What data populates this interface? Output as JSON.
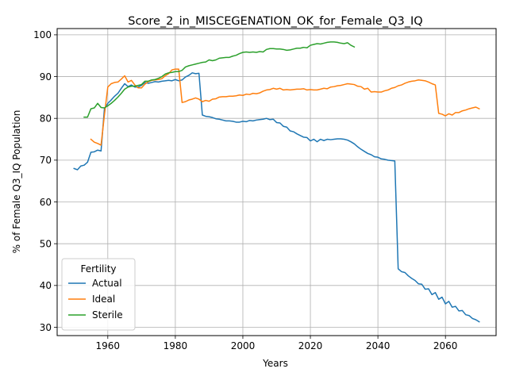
{
  "chart_data": {
    "type": "line",
    "title": "Score_2_in_MISCEGENATION_OK_for_Female_Q3_IQ",
    "xlabel": "Years",
    "ylabel": "% of Female Q3_IQ Population",
    "xlim": [
      1945,
      2075
    ],
    "ylim": [
      28,
      101.5
    ],
    "xticks": [
      1960,
      1980,
      2000,
      2020,
      2040,
      2060
    ],
    "yticks": [
      30,
      40,
      50,
      60,
      70,
      80,
      90,
      100
    ],
    "grid": true,
    "legend": {
      "title": "Fertility",
      "position": "lower-left"
    },
    "series": [
      {
        "name": "Actual",
        "color": "#1f77b4",
        "points": [
          [
            1950,
            68.0
          ],
          [
            1951,
            67.7
          ],
          [
            1952,
            68.6
          ],
          [
            1953,
            68.8
          ],
          [
            1954,
            69.5
          ],
          [
            1955,
            71.9
          ],
          [
            1956,
            72.0
          ],
          [
            1957,
            72.4
          ],
          [
            1958,
            72.2
          ],
          [
            1959,
            82.3
          ],
          [
            1960,
            83.6
          ],
          [
            1961,
            84.4
          ],
          [
            1962,
            85.3
          ],
          [
            1963,
            86.0
          ],
          [
            1964,
            87.2
          ],
          [
            1965,
            88.3
          ],
          [
            1966,
            87.6
          ],
          [
            1967,
            88.0
          ],
          [
            1968,
            87.5
          ],
          [
            1969,
            87.5
          ],
          [
            1970,
            87.9
          ],
          [
            1971,
            88.6
          ],
          [
            1972,
            88.4
          ],
          [
            1973,
            88.6
          ],
          [
            1974,
            88.8
          ],
          [
            1975,
            88.7
          ],
          [
            1976,
            88.9
          ],
          [
            1977,
            89.0
          ],
          [
            1978,
            89.1
          ],
          [
            1979,
            89.0
          ],
          [
            1980,
            89.3
          ],
          [
            1981,
            89.0
          ],
          [
            1982,
            89.2
          ],
          [
            1983,
            89.9
          ],
          [
            1984,
            90.3
          ],
          [
            1985,
            90.9
          ],
          [
            1986,
            90.7
          ],
          [
            1987,
            90.8
          ],
          [
            1988,
            80.8
          ],
          [
            1989,
            80.5
          ],
          [
            1990,
            80.4
          ],
          [
            1991,
            80.2
          ],
          [
            1992,
            79.9
          ],
          [
            1993,
            79.8
          ],
          [
            1994,
            79.6
          ],
          [
            1995,
            79.4
          ],
          [
            1996,
            79.4
          ],
          [
            1997,
            79.3
          ],
          [
            1998,
            79.1
          ],
          [
            1999,
            79.1
          ],
          [
            2000,
            79.3
          ],
          [
            2001,
            79.2
          ],
          [
            2002,
            79.5
          ],
          [
            2003,
            79.4
          ],
          [
            2004,
            79.6
          ],
          [
            2005,
            79.7
          ],
          [
            2006,
            79.8
          ],
          [
            2007,
            80.0
          ],
          [
            2008,
            79.7
          ],
          [
            2009,
            79.8
          ],
          [
            2010,
            79.0
          ],
          [
            2011,
            78.9
          ],
          [
            2012,
            78.1
          ],
          [
            2013,
            77.9
          ],
          [
            2014,
            77.0
          ],
          [
            2015,
            76.8
          ],
          [
            2016,
            76.3
          ],
          [
            2017,
            75.9
          ],
          [
            2018,
            75.5
          ],
          [
            2019,
            75.4
          ],
          [
            2020,
            74.6
          ],
          [
            2021,
            75.0
          ],
          [
            2022,
            74.4
          ],
          [
            2023,
            75.0
          ],
          [
            2024,
            74.7
          ],
          [
            2025,
            75.0
          ],
          [
            2026,
            74.9
          ],
          [
            2027,
            75.0
          ],
          [
            2028,
            75.1
          ],
          [
            2029,
            75.1
          ],
          [
            2030,
            75.0
          ],
          [
            2031,
            74.8
          ],
          [
            2032,
            74.4
          ],
          [
            2033,
            73.9
          ],
          [
            2034,
            73.2
          ],
          [
            2035,
            72.6
          ],
          [
            2036,
            72.1
          ],
          [
            2037,
            71.6
          ],
          [
            2038,
            71.3
          ],
          [
            2039,
            70.8
          ],
          [
            2040,
            70.7
          ],
          [
            2041,
            70.3
          ],
          [
            2042,
            70.2
          ],
          [
            2043,
            70.0
          ],
          [
            2044,
            69.9
          ],
          [
            2045,
            69.8
          ],
          [
            2046,
            44.0
          ],
          [
            2047,
            43.3
          ],
          [
            2048,
            43.1
          ],
          [
            2049,
            42.3
          ],
          [
            2050,
            41.7
          ],
          [
            2051,
            41.2
          ],
          [
            2052,
            40.4
          ],
          [
            2053,
            40.3
          ],
          [
            2054,
            39.1
          ],
          [
            2055,
            39.2
          ],
          [
            2056,
            37.8
          ],
          [
            2057,
            38.3
          ],
          [
            2058,
            36.7
          ],
          [
            2059,
            37.2
          ],
          [
            2060,
            35.6
          ],
          [
            2061,
            36.2
          ],
          [
            2062,
            34.8
          ],
          [
            2063,
            35.0
          ],
          [
            2064,
            33.9
          ],
          [
            2065,
            34.0
          ],
          [
            2066,
            33.0
          ],
          [
            2067,
            32.8
          ],
          [
            2068,
            32.1
          ],
          [
            2069,
            31.8
          ],
          [
            2070,
            31.3
          ]
        ]
      },
      {
        "name": "Ideal",
        "color": "#ff7f0e",
        "points": [
          [
            1955,
            75.0
          ],
          [
            1956,
            74.3
          ],
          [
            1957,
            74.0
          ],
          [
            1958,
            73.6
          ],
          [
            1959,
            80.8
          ],
          [
            1960,
            87.5
          ],
          [
            1961,
            88.3
          ],
          [
            1962,
            88.6
          ],
          [
            1963,
            88.7
          ],
          [
            1964,
            89.4
          ],
          [
            1965,
            90.2
          ],
          [
            1966,
            88.7
          ],
          [
            1967,
            89.1
          ],
          [
            1968,
            88.0
          ],
          [
            1969,
            87.3
          ],
          [
            1970,
            87.3
          ],
          [
            1971,
            88.2
          ],
          [
            1972,
            88.8
          ],
          [
            1973,
            89.1
          ],
          [
            1974,
            89.2
          ],
          [
            1975,
            89.3
          ],
          [
            1976,
            89.5
          ],
          [
            1977,
            90.2
          ],
          [
            1978,
            90.7
          ],
          [
            1979,
            91.6
          ],
          [
            1980,
            91.8
          ],
          [
            1981,
            91.8
          ],
          [
            1982,
            83.8
          ],
          [
            1983,
            84.0
          ],
          [
            1984,
            84.4
          ],
          [
            1985,
            84.6
          ],
          [
            1986,
            84.9
          ],
          [
            1987,
            84.6
          ],
          [
            1988,
            84.0
          ],
          [
            1989,
            84.3
          ],
          [
            1990,
            84.1
          ],
          [
            1991,
            84.6
          ],
          [
            1992,
            84.7
          ],
          [
            1993,
            85.1
          ],
          [
            1994,
            85.2
          ],
          [
            1995,
            85.2
          ],
          [
            1996,
            85.3
          ],
          [
            1997,
            85.3
          ],
          [
            1998,
            85.4
          ],
          [
            1999,
            85.6
          ],
          [
            2000,
            85.5
          ],
          [
            2001,
            85.8
          ],
          [
            2002,
            85.7
          ],
          [
            2003,
            86.0
          ],
          [
            2004,
            85.9
          ],
          [
            2005,
            86.1
          ],
          [
            2006,
            86.5
          ],
          [
            2007,
            86.8
          ],
          [
            2008,
            86.9
          ],
          [
            2009,
            87.2
          ],
          [
            2010,
            87.0
          ],
          [
            2011,
            87.2
          ],
          [
            2012,
            86.8
          ],
          [
            2013,
            86.9
          ],
          [
            2014,
            86.8
          ],
          [
            2015,
            86.9
          ],
          [
            2016,
            87.0
          ],
          [
            2017,
            87.0
          ],
          [
            2018,
            87.1
          ],
          [
            2019,
            86.8
          ],
          [
            2020,
            86.9
          ],
          [
            2021,
            86.8
          ],
          [
            2022,
            86.8
          ],
          [
            2023,
            87.0
          ],
          [
            2024,
            87.2
          ],
          [
            2025,
            87.1
          ],
          [
            2026,
            87.5
          ],
          [
            2027,
            87.6
          ],
          [
            2028,
            87.8
          ],
          [
            2029,
            87.9
          ],
          [
            2030,
            88.1
          ],
          [
            2031,
            88.3
          ],
          [
            2032,
            88.2
          ],
          [
            2033,
            88.1
          ],
          [
            2034,
            87.7
          ],
          [
            2035,
            87.6
          ],
          [
            2036,
            87.0
          ],
          [
            2037,
            87.2
          ],
          [
            2038,
            86.3
          ],
          [
            2039,
            86.4
          ],
          [
            2040,
            86.3
          ],
          [
            2041,
            86.3
          ],
          [
            2042,
            86.6
          ],
          [
            2043,
            86.8
          ],
          [
            2044,
            87.2
          ],
          [
            2045,
            87.4
          ],
          [
            2046,
            87.8
          ],
          [
            2047,
            88.0
          ],
          [
            2048,
            88.4
          ],
          [
            2049,
            88.7
          ],
          [
            2050,
            88.9
          ],
          [
            2051,
            89.0
          ],
          [
            2052,
            89.2
          ],
          [
            2053,
            89.1
          ],
          [
            2054,
            89.0
          ],
          [
            2055,
            88.7
          ],
          [
            2056,
            88.3
          ],
          [
            2057,
            88.0
          ],
          [
            2058,
            81.2
          ],
          [
            2059,
            81.0
          ],
          [
            2060,
            80.6
          ],
          [
            2061,
            81.1
          ],
          [
            2062,
            80.8
          ],
          [
            2063,
            81.4
          ],
          [
            2064,
            81.4
          ],
          [
            2065,
            81.8
          ],
          [
            2066,
            82.0
          ],
          [
            2067,
            82.3
          ],
          [
            2068,
            82.5
          ],
          [
            2069,
            82.7
          ],
          [
            2070,
            82.3
          ]
        ]
      },
      {
        "name": "Sterile",
        "color": "#2ca02c",
        "points": [
          [
            1953,
            80.3
          ],
          [
            1954,
            80.3
          ],
          [
            1955,
            82.3
          ],
          [
            1956,
            82.5
          ],
          [
            1957,
            83.6
          ],
          [
            1958,
            82.6
          ],
          [
            1959,
            82.5
          ],
          [
            1960,
            83.0
          ],
          [
            1961,
            83.6
          ],
          [
            1962,
            84.3
          ],
          [
            1963,
            85.1
          ],
          [
            1964,
            86.0
          ],
          [
            1965,
            87.0
          ],
          [
            1966,
            87.5
          ],
          [
            1967,
            87.7
          ],
          [
            1968,
            87.7
          ],
          [
            1969,
            87.9
          ],
          [
            1970,
            88.1
          ],
          [
            1971,
            88.9
          ],
          [
            1972,
            88.9
          ],
          [
            1973,
            89.2
          ],
          [
            1974,
            89.3
          ],
          [
            1975,
            89.6
          ],
          [
            1976,
            90.0
          ],
          [
            1977,
            90.6
          ],
          [
            1978,
            90.9
          ],
          [
            1979,
            91.0
          ],
          [
            1980,
            91.2
          ],
          [
            1981,
            91.2
          ],
          [
            1982,
            91.5
          ],
          [
            1983,
            92.3
          ],
          [
            1984,
            92.6
          ],
          [
            1985,
            92.8
          ],
          [
            1986,
            93.0
          ],
          [
            1987,
            93.2
          ],
          [
            1988,
            93.4
          ],
          [
            1989,
            93.5
          ],
          [
            1990,
            94.0
          ],
          [
            1991,
            93.8
          ],
          [
            1992,
            94.0
          ],
          [
            1993,
            94.4
          ],
          [
            1994,
            94.5
          ],
          [
            1995,
            94.6
          ],
          [
            1996,
            94.6
          ],
          [
            1997,
            94.9
          ],
          [
            1998,
            95.1
          ],
          [
            1999,
            95.5
          ],
          [
            2000,
            95.8
          ],
          [
            2001,
            95.9
          ],
          [
            2002,
            95.8
          ],
          [
            2003,
            95.9
          ],
          [
            2004,
            95.8
          ],
          [
            2005,
            96.0
          ],
          [
            2006,
            95.9
          ],
          [
            2007,
            96.5
          ],
          [
            2008,
            96.7
          ],
          [
            2009,
            96.7
          ],
          [
            2010,
            96.6
          ],
          [
            2011,
            96.6
          ],
          [
            2012,
            96.5
          ],
          [
            2013,
            96.3
          ],
          [
            2014,
            96.4
          ],
          [
            2015,
            96.6
          ],
          [
            2016,
            96.8
          ],
          [
            2017,
            96.8
          ],
          [
            2018,
            97.0
          ],
          [
            2019,
            96.9
          ],
          [
            2020,
            97.5
          ],
          [
            2021,
            97.7
          ],
          [
            2022,
            97.9
          ],
          [
            2023,
            97.8
          ],
          [
            2024,
            98.0
          ],
          [
            2025,
            98.2
          ],
          [
            2026,
            98.3
          ],
          [
            2027,
            98.3
          ],
          [
            2028,
            98.2
          ],
          [
            2029,
            98.0
          ],
          [
            2030,
            97.9
          ],
          [
            2031,
            98.1
          ],
          [
            2032,
            97.5
          ],
          [
            2033,
            97.1
          ]
        ]
      }
    ]
  }
}
